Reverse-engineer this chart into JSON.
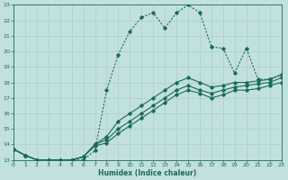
{
  "bg_color": "#c2e0e0",
  "grid_color": "#a8cece",
  "line_color": "#1a6b5a",
  "xlabel": "Humidex (Indice chaleur)",
  "xlim": [
    0,
    23
  ],
  "ylim": [
    13,
    23
  ],
  "yticks": [
    13,
    14,
    15,
    16,
    17,
    18,
    19,
    20,
    21,
    22,
    23
  ],
  "xticks": [
    0,
    1,
    2,
    3,
    4,
    5,
    6,
    7,
    8,
    9,
    10,
    11,
    12,
    13,
    14,
    15,
    16,
    17,
    18,
    19,
    20,
    21,
    22,
    23
  ],
  "series_main": {
    "x": [
      0,
      1,
      2,
      3,
      4,
      5,
      6,
      7,
      8,
      9,
      10,
      11,
      12,
      13,
      14,
      15,
      16,
      17,
      18,
      19,
      20,
      21,
      22,
      23
    ],
    "y": [
      13.7,
      13.3,
      13.0,
      13.0,
      13.0,
      13.0,
      13.0,
      13.6,
      17.5,
      19.8,
      21.3,
      22.2,
      22.5,
      21.5,
      22.5,
      23.0,
      22.5,
      20.3,
      20.2,
      18.6,
      20.2,
      18.2,
      18.2,
      18.5
    ]
  },
  "series_linear": [
    {
      "x": [
        0,
        1,
        2,
        3,
        4,
        5,
        6,
        7,
        8,
        9,
        10,
        11,
        12,
        13,
        14,
        15,
        16,
        17,
        18,
        19,
        20,
        21,
        22,
        23
      ],
      "y": [
        13.7,
        13.3,
        13.0,
        13.0,
        13.0,
        13.0,
        13.2,
        14.0,
        14.5,
        15.5,
        16.0,
        16.5,
        17.0,
        17.5,
        18.0,
        18.3,
        18.0,
        17.7,
        17.8,
        18.0,
        18.0,
        18.1,
        18.2,
        18.5
      ]
    },
    {
      "x": [
        0,
        1,
        2,
        3,
        4,
        5,
        6,
        7,
        8,
        9,
        10,
        11,
        12,
        13,
        14,
        15,
        16,
        17,
        18,
        19,
        20,
        21,
        22,
        23
      ],
      "y": [
        13.7,
        13.3,
        13.0,
        13.0,
        13.0,
        13.0,
        13.2,
        14.0,
        14.3,
        15.0,
        15.5,
        16.0,
        16.5,
        17.0,
        17.5,
        17.8,
        17.5,
        17.3,
        17.5,
        17.7,
        17.8,
        17.9,
        18.0,
        18.3
      ]
    },
    {
      "x": [
        0,
        1,
        2,
        3,
        4,
        5,
        6,
        7,
        8,
        9,
        10,
        11,
        12,
        13,
        14,
        15,
        16,
        17,
        18,
        19,
        20,
        21,
        22,
        23
      ],
      "y": [
        13.7,
        13.3,
        13.0,
        13.0,
        13.0,
        13.0,
        13.2,
        13.9,
        14.1,
        14.7,
        15.2,
        15.7,
        16.2,
        16.7,
        17.2,
        17.5,
        17.3,
        17.0,
        17.2,
        17.5,
        17.5,
        17.6,
        17.8,
        18.0
      ]
    }
  ]
}
